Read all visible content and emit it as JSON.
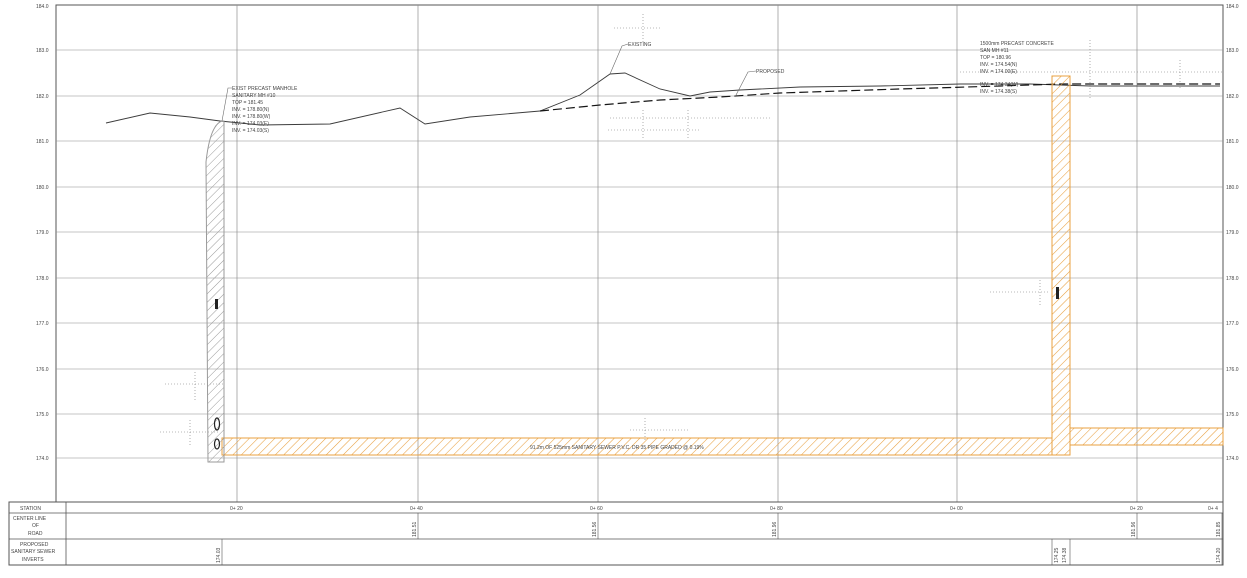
{
  "elevation_labels": [
    "184.0",
    "183.0",
    "182.0",
    "181.0",
    "180.0",
    "179.0",
    "178.0",
    "177.0",
    "176.0",
    "175.0",
    "174.0"
  ],
  "station_labels": [
    "0+ 20",
    "0+ 40",
    "0+ 60",
    "0+ 80",
    "0+ 00",
    "0+ 20",
    "0+ 4"
  ],
  "callouts": {
    "existing": "EXISTING",
    "proposed": "PROPOSED",
    "mh_left": {
      "lines": [
        "EXIST PRECAST MANHOLE",
        "SANITARY MH #10",
        "TOP = 181.45",
        "INV. = 178.80(N)",
        "INV. = 178.80(W)",
        "INV. = 174.03(E)",
        "INV. = 174.03(S)"
      ]
    },
    "mh_right": {
      "lines": [
        "1500mm PRECAST CONCRETE",
        "SAN MH #11",
        "TOP = 180.96",
        "INV. = 174.54(N)",
        "INV. = 174.00(E)",
        "INV. = 174.34(W)",
        "INV. = 174.38(S)"
      ]
    },
    "pipe": "91.2m OF 525mm SANITARY SEWER P.V.C. DR 35 PIPE GRADED @ 0.19%"
  },
  "table": {
    "row_labels": [
      [
        "STATION"
      ],
      [
        "CENTER LINE",
        "OF",
        "ROAD"
      ],
      [
        "PROPOSED",
        "SANITARY SEWER",
        "INVERTS"
      ]
    ],
    "road_values": [
      "181.51",
      "181.56",
      "181.96",
      "181.96",
      "181.85"
    ],
    "invert_values": [
      "174.03",
      "174.25",
      "174.38",
      "174.20"
    ]
  },
  "colors": {
    "grid": "#8e8e8e",
    "frame": "#555555",
    "ground_existing": "#3c3c3c",
    "ground_proposed": "#151515",
    "pipe_orange": "#e8a040",
    "manhole_grey": "#9a9a9a",
    "leader": "#6a6a6a"
  }
}
